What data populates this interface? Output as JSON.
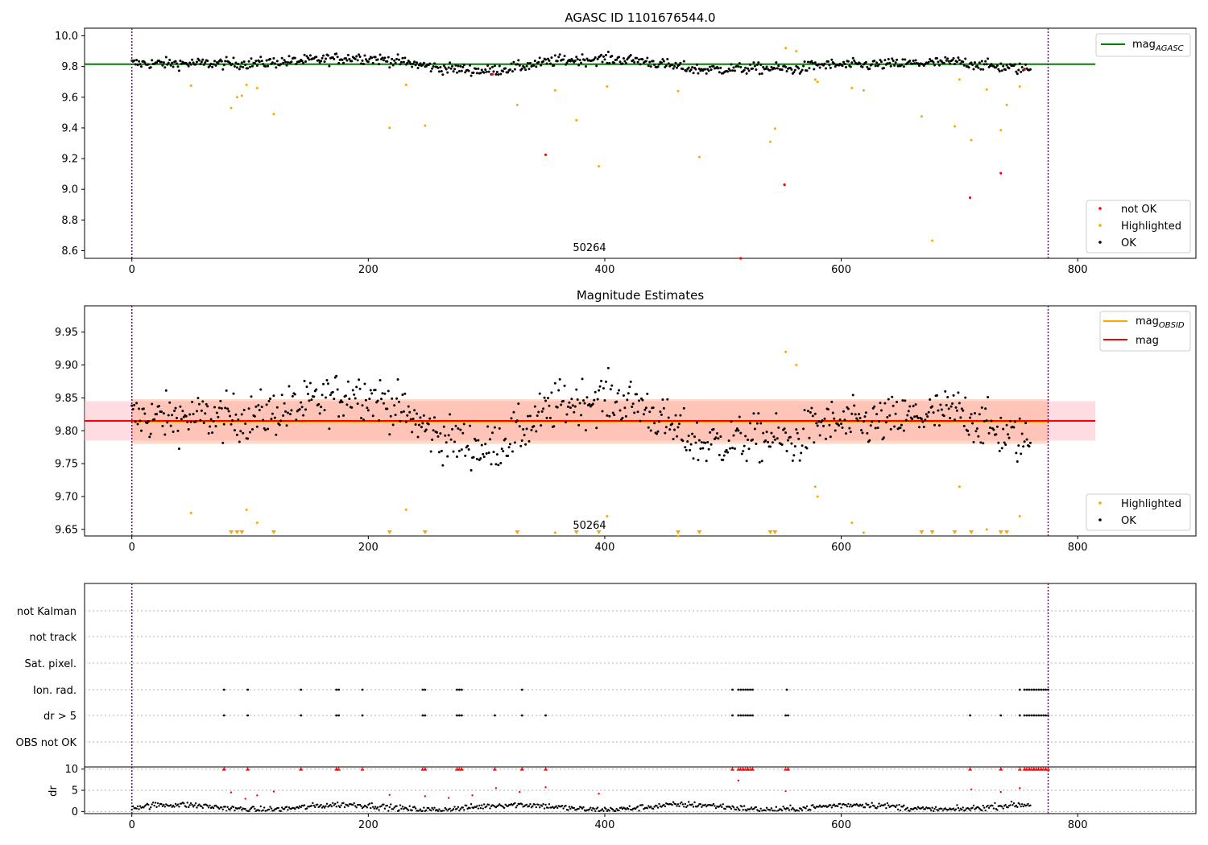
{
  "chart_data": [
    {
      "type": "scatter",
      "title": "AGASC ID 1101676544.0",
      "xlim": [
        -40,
        900
      ],
      "ylim": [
        8.55,
        10.05
      ],
      "x_ticks": [
        0,
        200,
        400,
        600,
        800
      ],
      "y_ticks": [
        8.6,
        8.8,
        9.0,
        9.2,
        9.4,
        9.6,
        9.8,
        10.0
      ],
      "y_tick_labels": [
        "8.6",
        "8.8",
        "9.0",
        "9.2",
        "9.4",
        "9.6",
        "9.8",
        "10.0"
      ],
      "annotation": {
        "text": "50264",
        "x": 387,
        "y": 8.6
      },
      "vlines": [
        0,
        775
      ],
      "mag_line": {
        "label": "mag",
        "sub": "AGASC",
        "value": 9.815,
        "x": [
          -40,
          815
        ],
        "color": "#008000"
      },
      "legend_top": "top-right",
      "legend_bottom": {
        "position": "bottom-right",
        "entries": [
          {
            "label": "not OK",
            "color": "#ff0000"
          },
          {
            "label": "Highlighted",
            "color": "#ffa500"
          },
          {
            "label": "OK",
            "color": "#000000"
          }
        ]
      },
      "series": [
        {
          "name": "OK",
          "color": "#000000",
          "x_range": [
            0,
            760
          ],
          "baseline": [
            [
              0,
              9.82
            ],
            [
              100,
              9.82
            ],
            [
              150,
              9.84
            ],
            [
              190,
              9.86
            ],
            [
              220,
              9.84
            ],
            [
              260,
              9.79
            ],
            [
              285,
              9.78
            ],
            [
              300,
              9.77
            ],
            [
              330,
              9.8
            ],
            [
              360,
              9.84
            ],
            [
              400,
              9.85
            ],
            [
              430,
              9.84
            ],
            [
              460,
              9.8
            ],
            [
              480,
              9.78
            ],
            [
              540,
              9.79
            ],
            [
              560,
              9.78
            ],
            [
              580,
              9.81
            ],
            [
              620,
              9.81
            ],
            [
              660,
              9.82
            ],
            [
              700,
              9.83
            ],
            [
              730,
              9.8
            ],
            [
              760,
              9.78
            ]
          ],
          "noise": 0.018
        },
        {
          "name": "Highlighted",
          "color": "#ffa500",
          "points": [
            [
              50,
              9.675
            ],
            [
              84,
              9.53
            ],
            [
              89,
              9.6
            ],
            [
              93,
              9.61
            ],
            [
              97,
              9.68
            ],
            [
              106,
              9.66
            ],
            [
              120,
              9.49
            ],
            [
              218,
              9.4
            ],
            [
              232,
              9.68
            ],
            [
              248,
              9.415
            ],
            [
              326,
              9.55
            ],
            [
              358,
              9.645
            ],
            [
              376,
              9.45
            ],
            [
              395,
              9.15
            ],
            [
              402,
              9.67
            ],
            [
              462,
              9.64
            ],
            [
              480,
              9.21
            ],
            [
              540,
              9.31
            ],
            [
              544,
              9.395
            ],
            [
              553,
              9.92
            ],
            [
              562,
              9.9
            ],
            [
              578,
              9.715
            ],
            [
              580,
              9.7
            ],
            [
              609,
              9.66
            ],
            [
              619,
              9.645
            ],
            [
              668,
              9.475
            ],
            [
              677,
              8.665
            ],
            [
              696,
              9.41
            ],
            [
              700,
              9.715
            ],
            [
              710,
              9.32
            ],
            [
              723,
              9.65
            ],
            [
              735,
              9.385
            ],
            [
              740,
              9.55
            ],
            [
              751,
              9.67
            ]
          ]
        },
        {
          "name": "not OK",
          "color": "#ff0000",
          "points": [
            [
              305,
              9.75
            ],
            [
              350,
              9.225
            ],
            [
              515,
              8.545
            ],
            [
              552,
              9.03
            ],
            [
              709,
              8.945
            ],
            [
              735,
              9.105
            ],
            [
              755,
              9.78
            ]
          ]
        }
      ]
    },
    {
      "type": "scatter",
      "title": "Magnitude Estimates",
      "xlim": [
        -40,
        900
      ],
      "ylim": [
        9.64,
        9.99
      ],
      "x_ticks": [
        0,
        200,
        400,
        600,
        800
      ],
      "y_ticks": [
        9.65,
        9.7,
        9.75,
        9.8,
        9.85,
        9.9,
        9.95
      ],
      "y_tick_labels": [
        "9.65",
        "9.70",
        "9.75",
        "9.80",
        "9.85",
        "9.90",
        "9.95"
      ],
      "annotation": {
        "text": "50264",
        "x": 387,
        "y": 9.65
      },
      "vlines": [
        0,
        775
      ],
      "mag_line": {
        "label": "mag",
        "value": 9.815,
        "x": [
          -40,
          815
        ],
        "color": "#ff0000",
        "band": [
          9.785,
          9.845
        ],
        "band_color": "#ffc0cb"
      },
      "mag_obsid": {
        "label": "mag",
        "sub": "OBSID",
        "value": 9.814,
        "x": [
          0,
          775
        ],
        "color": "#ffa500",
        "band": [
          9.78,
          9.848
        ],
        "band_color": "#ffa07a"
      },
      "legend_top": "top-right",
      "legend_bottom": {
        "position": "bottom-right",
        "entries": [
          {
            "label": "Highlighted",
            "color": "#ffa500"
          },
          {
            "label": "OK",
            "color": "#000000"
          }
        ]
      },
      "clipped_low_markers_x": [
        84,
        89,
        93,
        120,
        218,
        248,
        326,
        376,
        395,
        462,
        480,
        540,
        544,
        668,
        677,
        696,
        710,
        735,
        740
      ]
    },
    {
      "type": "scatter",
      "xlim": [
        -40,
        900
      ],
      "x_ticks": [
        0,
        200,
        400,
        600,
        800
      ],
      "vlines": [
        0,
        775
      ],
      "categories": [
        "not Kalman",
        "not track",
        "Sat. pixel.",
        "Ion. rad.",
        "dr > 5",
        "OBS not OK"
      ],
      "flags": {
        "Ion. rad.": [
          78,
          98,
          143,
          173,
          175,
          195,
          246,
          248,
          275,
          277,
          279,
          330,
          508,
          513,
          515,
          517,
          519,
          521,
          523,
          525,
          554,
          751,
          755,
          757,
          759,
          761,
          763,
          765,
          767,
          769,
          771,
          773,
          775
        ],
        "dr > 5": [
          78,
          98,
          143,
          173,
          175,
          195,
          246,
          248,
          275,
          277,
          279,
          307,
          330,
          350,
          508,
          513,
          515,
          517,
          519,
          521,
          523,
          525,
          553,
          555,
          709,
          735,
          751,
          755,
          757,
          759,
          761,
          763,
          765,
          767,
          769,
          771,
          773,
          775
        ]
      }
    },
    {
      "type": "scatter",
      "ylabel": "dr",
      "xlim": [
        -40,
        900
      ],
      "ylim": [
        -0.5,
        10.5
      ],
      "y_ticks": [
        0,
        5,
        10
      ],
      "y_tick_labels": [
        "0",
        "5",
        "10"
      ],
      "x_ticks": [
        0,
        200,
        400,
        600,
        800
      ],
      "x_tick_labels": [
        "0",
        "200",
        "400",
        "600",
        "800"
      ],
      "vlines": [
        0,
        775
      ],
      "dr_high_points": [
        [
          84,
          4.5
        ],
        [
          96,
          3.0
        ],
        [
          106,
          3.8
        ],
        [
          120,
          4.7
        ],
        [
          218,
          3.9
        ],
        [
          248,
          3.6
        ],
        [
          268,
          3.2
        ],
        [
          288,
          3.8
        ],
        [
          308,
          5.5
        ],
        [
          328,
          4.6
        ],
        [
          350,
          5.7
        ],
        [
          395,
          4.2
        ],
        [
          513,
          7.3
        ],
        [
          553,
          4.8
        ],
        [
          710,
          5.2
        ],
        [
          735,
          4.6
        ],
        [
          751,
          5.5
        ]
      ]
    }
  ]
}
